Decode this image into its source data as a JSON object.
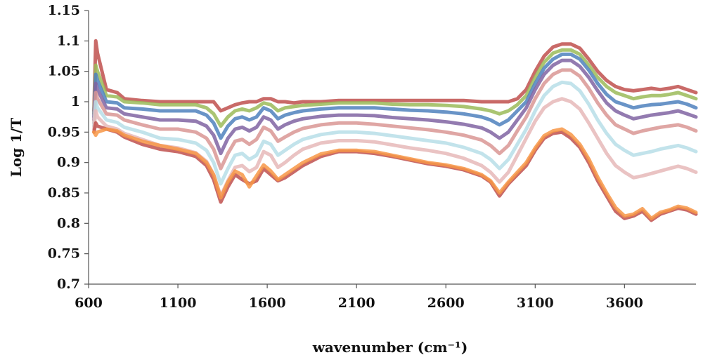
{
  "chart_data": {
    "type": "line",
    "title": "",
    "xlabel": "wavenumber (cm⁻¹)",
    "ylabel": "Log 1/T",
    "xlim": [
      600,
      4000
    ],
    "ylim": [
      0.7,
      1.15
    ],
    "x_ticks": [
      "600",
      "1100",
      "1600",
      "2100",
      "2600",
      "3100",
      "3600"
    ],
    "y_ticks": [
      "0.7",
      "0.75",
      "0.8",
      "0.85",
      "0.9",
      "0.95",
      "1",
      "1.05",
      "1.1",
      "1.15"
    ],
    "grid": false,
    "legend": "none",
    "x": [
      630,
      640,
      650,
      700,
      760,
      800,
      900,
      1000,
      1100,
      1200,
      1260,
      1300,
      1340,
      1380,
      1420,
      1460,
      1500,
      1540,
      1580,
      1620,
      1660,
      1700,
      1750,
      1800,
      1900,
      2000,
      2100,
      2200,
      2300,
      2400,
      2500,
      2600,
      2700,
      2800,
      2850,
      2900,
      2950,
      3000,
      3050,
      3100,
      3150,
      3200,
      3250,
      3300,
      3350,
      3400,
      3450,
      3500,
      3550,
      3600,
      3650,
      3700,
      3750,
      3800,
      3850,
      3900,
      3950,
      4000
    ],
    "series": [
      {
        "color": "#c0504d",
        "values": [
          0.985,
          1.1,
          1.08,
          1.02,
          1.015,
          1.005,
          1.002,
          1.0,
          1.0,
          1.0,
          1.0,
          1.0,
          0.985,
          0.99,
          0.995,
          0.998,
          1.0,
          1.0,
          1.005,
          1.005,
          1.0,
          1.0,
          0.998,
          1.0,
          1.0,
          1.002,
          1.002,
          1.002,
          1.002,
          1.002,
          1.002,
          1.002,
          1.002,
          1.0,
          1.0,
          1.0,
          1.0,
          1.005,
          1.02,
          1.05,
          1.075,
          1.09,
          1.095,
          1.095,
          1.088,
          1.07,
          1.05,
          1.035,
          1.025,
          1.02,
          1.018,
          1.02,
          1.022,
          1.02,
          1.022,
          1.025,
          1.02,
          1.015
        ]
      },
      {
        "color": "#9bbb59",
        "values": [
          0.98,
          1.06,
          1.05,
          1.01,
          1.008,
          1.0,
          0.998,
          0.995,
          0.995,
          0.995,
          0.99,
          0.98,
          0.96,
          0.975,
          0.985,
          0.988,
          0.985,
          0.99,
          0.998,
          0.995,
          0.985,
          0.99,
          0.992,
          0.994,
          0.996,
          0.998,
          0.998,
          0.998,
          0.996,
          0.995,
          0.995,
          0.994,
          0.992,
          0.988,
          0.985,
          0.98,
          0.985,
          0.995,
          1.01,
          1.04,
          1.065,
          1.08,
          1.085,
          1.085,
          1.078,
          1.06,
          1.04,
          1.025,
          1.015,
          1.01,
          1.005,
          1.008,
          1.01,
          1.01,
          1.012,
          1.015,
          1.01,
          1.005
        ]
      },
      {
        "color": "#4f81bd",
        "values": [
          0.975,
          1.045,
          1.035,
          1.0,
          0.998,
          0.99,
          0.988,
          0.985,
          0.985,
          0.985,
          0.978,
          0.965,
          0.94,
          0.96,
          0.972,
          0.975,
          0.97,
          0.975,
          0.99,
          0.985,
          0.972,
          0.978,
          0.982,
          0.985,
          0.988,
          0.99,
          0.99,
          0.99,
          0.988,
          0.986,
          0.985,
          0.983,
          0.98,
          0.975,
          0.97,
          0.962,
          0.97,
          0.985,
          1.0,
          1.03,
          1.055,
          1.07,
          1.078,
          1.078,
          1.07,
          1.052,
          1.03,
          1.012,
          1.0,
          0.995,
          0.99,
          0.993,
          0.995,
          0.996,
          0.998,
          1.0,
          0.996,
          0.99
        ]
      },
      {
        "color": "#8064a2",
        "values": [
          0.97,
          1.03,
          1.02,
          0.99,
          0.988,
          0.98,
          0.975,
          0.97,
          0.97,
          0.968,
          0.96,
          0.945,
          0.915,
          0.94,
          0.955,
          0.958,
          0.952,
          0.958,
          0.975,
          0.97,
          0.955,
          0.962,
          0.968,
          0.972,
          0.976,
          0.978,
          0.978,
          0.977,
          0.974,
          0.972,
          0.97,
          0.967,
          0.963,
          0.957,
          0.95,
          0.94,
          0.95,
          0.97,
          0.99,
          1.02,
          1.045,
          1.06,
          1.068,
          1.068,
          1.058,
          1.04,
          1.018,
          0.998,
          0.985,
          0.978,
          0.972,
          0.975,
          0.978,
          0.98,
          0.982,
          0.985,
          0.98,
          0.975
        ]
      },
      {
        "color": "#d99694",
        "values": [
          0.965,
          1.015,
          1.005,
          0.98,
          0.978,
          0.97,
          0.962,
          0.955,
          0.955,
          0.95,
          0.94,
          0.922,
          0.89,
          0.915,
          0.935,
          0.938,
          0.93,
          0.938,
          0.958,
          0.952,
          0.935,
          0.942,
          0.95,
          0.956,
          0.962,
          0.965,
          0.965,
          0.963,
          0.96,
          0.957,
          0.954,
          0.95,
          0.945,
          0.937,
          0.928,
          0.915,
          0.928,
          0.952,
          0.975,
          1.005,
          1.03,
          1.045,
          1.052,
          1.052,
          1.042,
          1.022,
          0.998,
          0.978,
          0.962,
          0.955,
          0.948,
          0.952,
          0.955,
          0.958,
          0.96,
          0.962,
          0.958,
          0.952
        ]
      },
      {
        "color": "#b7dee8",
        "values": [
          0.96,
          1.0,
          0.99,
          0.97,
          0.966,
          0.958,
          0.95,
          0.94,
          0.938,
          0.932,
          0.92,
          0.9,
          0.865,
          0.89,
          0.912,
          0.915,
          0.905,
          0.912,
          0.935,
          0.93,
          0.912,
          0.92,
          0.93,
          0.938,
          0.946,
          0.95,
          0.95,
          0.948,
          0.944,
          0.94,
          0.936,
          0.932,
          0.925,
          0.915,
          0.905,
          0.89,
          0.905,
          0.93,
          0.955,
          0.985,
          1.01,
          1.025,
          1.032,
          1.03,
          1.018,
          0.996,
          0.97,
          0.948,
          0.93,
          0.92,
          0.912,
          0.915,
          0.918,
          0.922,
          0.925,
          0.928,
          0.924,
          0.918
        ]
      },
      {
        "color": "#e6b9b8",
        "values": [
          0.955,
          0.985,
          0.975,
          0.96,
          0.955,
          0.948,
          0.938,
          0.928,
          0.924,
          0.916,
          0.902,
          0.88,
          0.845,
          0.87,
          0.892,
          0.895,
          0.885,
          0.892,
          0.918,
          0.912,
          0.892,
          0.9,
          0.912,
          0.922,
          0.932,
          0.936,
          0.936,
          0.934,
          0.929,
          0.924,
          0.92,
          0.915,
          0.907,
          0.895,
          0.884,
          0.868,
          0.884,
          0.912,
          0.94,
          0.968,
          0.99,
          1.0,
          1.005,
          1.0,
          0.988,
          0.965,
          0.94,
          0.915,
          0.895,
          0.884,
          0.875,
          0.878,
          0.882,
          0.886,
          0.89,
          0.894,
          0.89,
          0.884
        ]
      },
      {
        "color": "#c0504d",
        "values": [
          0.95,
          0.965,
          0.96,
          0.955,
          0.95,
          0.942,
          0.93,
          0.922,
          0.918,
          0.91,
          0.895,
          0.872,
          0.835,
          0.86,
          0.88,
          0.872,
          0.865,
          0.87,
          0.89,
          0.88,
          0.87,
          0.875,
          0.885,
          0.895,
          0.91,
          0.918,
          0.918,
          0.915,
          0.91,
          0.904,
          0.898,
          0.894,
          0.888,
          0.878,
          0.868,
          0.845,
          0.865,
          0.88,
          0.895,
          0.92,
          0.94,
          0.948,
          0.95,
          0.94,
          0.925,
          0.9,
          0.87,
          0.845,
          0.82,
          0.808,
          0.812,
          0.82,
          0.805,
          0.815,
          0.82,
          0.825,
          0.822,
          0.815
        ]
      },
      {
        "color": "#f79646",
        "values": [
          0.95,
          0.945,
          0.95,
          0.955,
          0.952,
          0.945,
          0.935,
          0.928,
          0.922,
          0.915,
          0.9,
          0.88,
          0.842,
          0.868,
          0.886,
          0.88,
          0.86,
          0.878,
          0.896,
          0.886,
          0.872,
          0.88,
          0.89,
          0.9,
          0.914,
          0.92,
          0.92,
          0.918,
          0.912,
          0.906,
          0.9,
          0.896,
          0.89,
          0.88,
          0.87,
          0.85,
          0.868,
          0.884,
          0.9,
          0.924,
          0.944,
          0.952,
          0.955,
          0.946,
          0.93,
          0.906,
          0.876,
          0.85,
          0.826,
          0.812,
          0.815,
          0.824,
          0.808,
          0.818,
          0.822,
          0.828,
          0.825,
          0.818
        ]
      }
    ]
  }
}
